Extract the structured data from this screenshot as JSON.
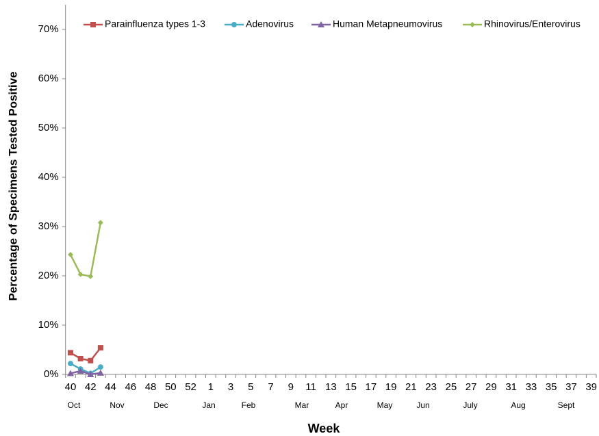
{
  "chart_data": {
    "type": "line",
    "x_label": "Week",
    "y_label": "Percentage of Specimens Tested Positive",
    "categories": [
      "40",
      null,
      "42",
      null,
      "44",
      null,
      "46",
      null,
      "48",
      null,
      "50",
      null,
      "52",
      null,
      "1",
      null,
      "3",
      null,
      "5",
      null,
      "7",
      null,
      "9",
      null,
      "11",
      null,
      "13",
      null,
      "15",
      null,
      "17",
      null,
      "19",
      null,
      "21",
      null,
      "23",
      null,
      "25",
      null,
      "27",
      null,
      "29",
      null,
      "31",
      null,
      "33",
      null,
      "35",
      null,
      "37",
      null,
      "39"
    ],
    "months": [
      "Oct",
      "Nov",
      "Dec",
      "Jan",
      "Feb",
      "Mar",
      "Apr",
      "May",
      "Jun",
      "July",
      "Aug",
      "Sept"
    ],
    "series": [
      {
        "name": "Parainfluenza types 1-3",
        "color": "#c0504d",
        "marker": "square",
        "values": [
          4.4,
          3.2,
          2.8,
          5.4,
          null,
          null,
          null,
          null,
          null,
          null,
          null,
          null,
          null,
          null,
          null,
          null,
          null,
          null,
          null,
          null,
          null,
          null,
          null,
          null,
          null,
          null,
          null,
          null,
          null,
          null,
          null,
          null,
          null,
          null,
          null,
          null,
          null,
          null,
          null,
          null,
          null,
          null,
          null,
          null,
          null,
          null,
          null,
          null,
          null,
          null,
          null,
          null,
          null
        ]
      },
      {
        "name": "Adenovirus",
        "color": "#4bacc6",
        "marker": "circle",
        "values": [
          2.2,
          1.1,
          0.2,
          1.5,
          null,
          null,
          null,
          null,
          null,
          null,
          null,
          null,
          null,
          null,
          null,
          null,
          null,
          null,
          null,
          null,
          null,
          null,
          null,
          null,
          null,
          null,
          null,
          null,
          null,
          null,
          null,
          null,
          null,
          null,
          null,
          null,
          null,
          null,
          null,
          null,
          null,
          null,
          null,
          null,
          null,
          null,
          null,
          null,
          null,
          null,
          null,
          null,
          null
        ]
      },
      {
        "name": "Human Metapneumovirus",
        "color": "#8064a2",
        "marker": "triangle",
        "values": [
          0.2,
          0.7,
          0,
          0.3,
          null,
          null,
          null,
          null,
          null,
          null,
          null,
          null,
          null,
          null,
          null,
          null,
          null,
          null,
          null,
          null,
          null,
          null,
          null,
          null,
          null,
          null,
          null,
          null,
          null,
          null,
          null,
          null,
          null,
          null,
          null,
          null,
          null,
          null,
          null,
          null,
          null,
          null,
          null,
          null,
          null,
          null,
          null,
          null,
          null,
          null,
          null,
          null,
          null
        ]
      },
      {
        "name": "Rhinovirus/Enterovirus",
        "color": "#9bbb59",
        "marker": "diamond",
        "values": [
          24.3,
          20.3,
          19.9,
          30.8,
          null,
          null,
          null,
          null,
          null,
          null,
          null,
          null,
          null,
          null,
          null,
          null,
          null,
          null,
          null,
          null,
          null,
          null,
          null,
          null,
          null,
          null,
          null,
          null,
          null,
          null,
          null,
          null,
          null,
          null,
          null,
          null,
          null,
          null,
          null,
          null,
          null,
          null,
          null,
          null,
          null,
          null,
          null,
          null,
          null,
          null,
          null,
          null,
          null
        ]
      }
    ],
    "ylim": [
      0,
      75
    ],
    "yticks": [
      {
        "value": 0,
        "label": "0%"
      },
      {
        "value": 10,
        "label": "10%"
      },
      {
        "value": 20,
        "label": "20%"
      },
      {
        "value": 30,
        "label": "30%"
      },
      {
        "value": 40,
        "label": "40%"
      },
      {
        "value": 50,
        "label": "50%"
      },
      {
        "value": 60,
        "label": "60%"
      },
      {
        "value": 70,
        "label": "70%"
      }
    ],
    "legend": "top"
  }
}
